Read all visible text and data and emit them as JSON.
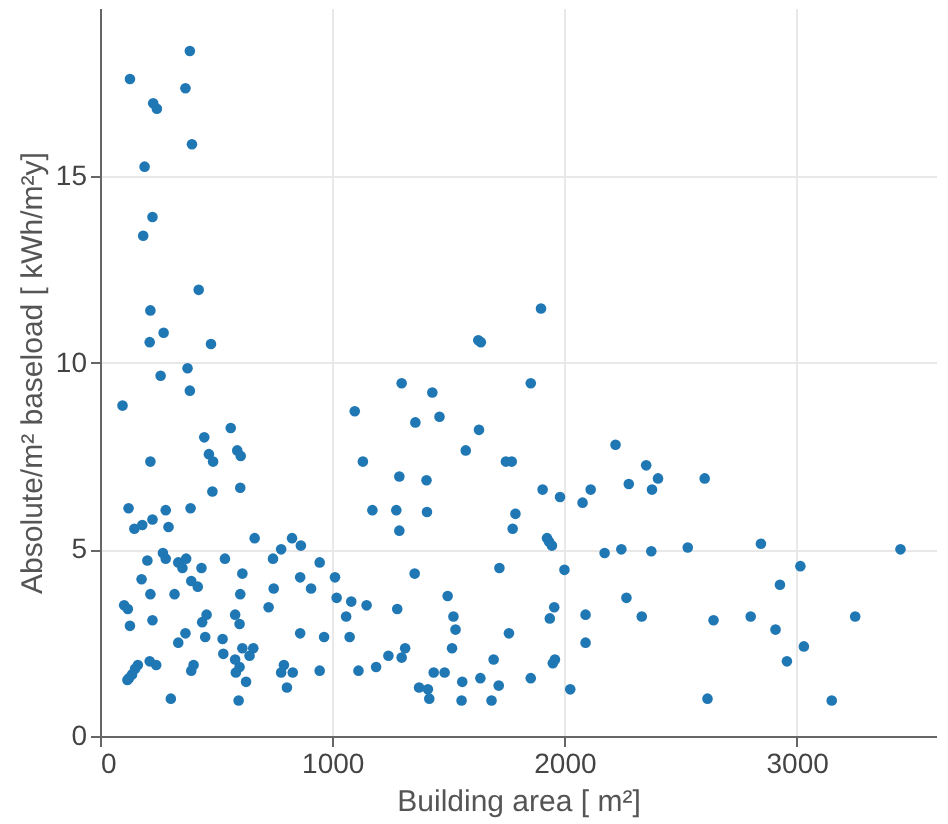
{
  "chart_data": {
    "type": "scatter",
    "xlabel": "Building area [ m²]",
    "ylabel": "Absolute/m² baseload [ kWh/m²y]",
    "xlim": [
      0,
      3600
    ],
    "ylim": [
      0,
      19.5
    ],
    "xticks": [
      0,
      1000,
      2000,
      3000
    ],
    "yticks": [
      0,
      5,
      10,
      15
    ],
    "grid": true,
    "marker": "circle",
    "series": [
      {
        "color": "#1f77b4",
        "x": [
          387,
          129,
          368,
          229,
          245,
          396,
          192,
          226,
          186,
          425,
          217,
          274,
          214,
          478,
          1629,
          1640,
          377,
          261,
          387,
          97,
          1299,
          1431,
          1097,
          1358,
          1462,
          1632,
          563,
          449,
          469,
          487,
          591,
          606,
          217,
          1575,
          1132,
          1748,
          1773,
          1289,
          1406,
          484,
          604,
          123,
          283,
          390,
          148,
          182,
          226,
          295,
          1173,
          1276,
          1408,
          1289,
          1789,
          1777,
          666,
          827,
          865,
          780,
          745,
          271,
          283,
          204,
          337,
          371,
          355,
          437,
          538,
          946,
          613,
          862,
          1012,
          1720,
          1355,
          179,
          393,
          421,
          909,
          748,
          217,
          321,
          604,
          1019,
          1082,
          1148,
          1497,
          726,
          1280,
          104,
          120,
          1060,
          1522,
          459,
          582,
          440,
          601,
          129,
          226,
          1531,
          1761,
          368,
          337,
          862,
          965,
          1075,
          453,
          528,
          613,
          660,
          531,
          582,
          644,
          1314,
          1299,
          1242,
          1516,
          1695,
          163,
          151,
          138,
          125,
          118,
          214,
          242,
          403,
          393,
          601,
          585,
          629,
          597,
          305,
          792,
          780,
          830,
          805,
          946,
          1113,
          1189,
          1374,
          1412,
          1418,
          1437,
          1484,
          1560,
          1638,
          1557,
          1686,
          1717,
          1899,
          1855,
          2220,
          2352,
          2403,
          2604,
          2277,
          2377,
          1906,
          1981,
          2113,
          2078,
          1925,
          1934,
          1946,
          2173,
          2245,
          2374,
          2531,
          2846,
          3447,
          2000,
          3016,
          2928,
          2267,
          1956,
          1937,
          2091,
          2333,
          2642,
          2802,
          3252,
          2909,
          2091,
          3031,
          1959,
          1950,
          2958,
          1855,
          2025,
          2616,
          3151
        ],
        "values": [
          18.35,
          17.6,
          17.35,
          16.95,
          16.8,
          15.85,
          15.25,
          13.9,
          13.4,
          11.95,
          11.4,
          10.8,
          10.55,
          10.5,
          10.6,
          10.55,
          9.85,
          9.65,
          9.25,
          8.85,
          9.45,
          9.2,
          8.7,
          8.4,
          8.55,
          8.2,
          8.25,
          8.0,
          7.55,
          7.35,
          7.65,
          7.5,
          7.35,
          7.65,
          7.35,
          7.35,
          7.35,
          6.95,
          6.85,
          6.55,
          6.65,
          6.1,
          6.05,
          6.1,
          5.55,
          5.65,
          5.8,
          5.6,
          6.05,
          6.05,
          6.0,
          5.5,
          5.95,
          5.55,
          5.3,
          5.3,
          5.1,
          5.0,
          4.75,
          4.9,
          4.75,
          4.7,
          4.65,
          4.75,
          4.5,
          4.5,
          4.75,
          4.65,
          4.35,
          4.25,
          4.25,
          4.5,
          4.35,
          4.2,
          4.15,
          4.0,
          3.95,
          3.95,
          3.8,
          3.8,
          3.8,
          3.7,
          3.6,
          3.5,
          3.75,
          3.45,
          3.4,
          3.5,
          3.4,
          3.2,
          3.2,
          3.25,
          3.25,
          3.05,
          3.0,
          2.95,
          3.1,
          2.85,
          2.75,
          2.75,
          2.5,
          2.75,
          2.65,
          2.65,
          2.65,
          2.6,
          2.35,
          2.35,
          2.2,
          2.05,
          2.15,
          2.35,
          2.1,
          2.15,
          2.35,
          2.05,
          1.9,
          1.8,
          1.65,
          1.55,
          1.5,
          2.0,
          1.9,
          1.9,
          1.75,
          1.85,
          1.7,
          1.45,
          0.95,
          1.0,
          1.9,
          1.7,
          1.7,
          1.3,
          1.75,
          1.75,
          1.85,
          1.3,
          1.25,
          1.0,
          1.7,
          1.7,
          1.45,
          1.55,
          0.95,
          0.95,
          1.35,
          11.45,
          9.45,
          7.8,
          7.25,
          6.9,
          6.9,
          6.75,
          6.6,
          6.6,
          6.4,
          6.6,
          6.25,
          5.3,
          5.2,
          5.1,
          4.9,
          5.0,
          4.95,
          5.05,
          5.15,
          5.0,
          4.45,
          4.55,
          4.05,
          3.7,
          3.45,
          3.15,
          3.25,
          3.2,
          3.1,
          3.2,
          3.2,
          2.85,
          2.5,
          2.4,
          2.05,
          1.95,
          2.0,
          1.55,
          1.25,
          1.0,
          0.95
        ]
      }
    ]
  }
}
